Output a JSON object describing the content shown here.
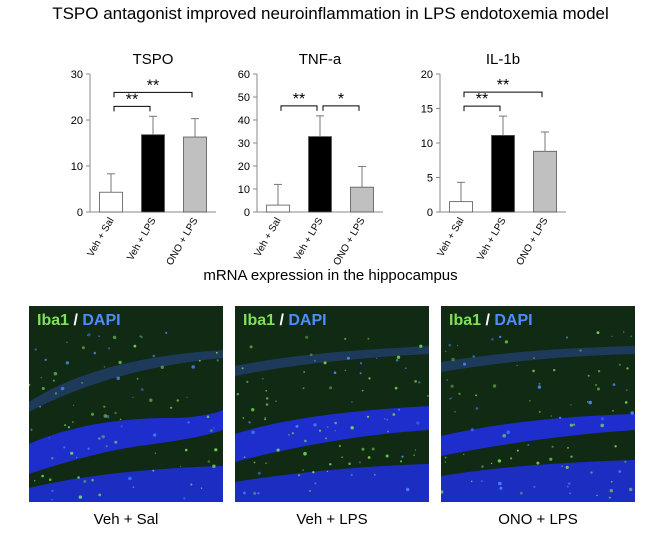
{
  "title": "TSPO antagonist improved neuroinflammation in LPS endotoxemia model",
  "subtitle": "mRNA expression in the hippocampus",
  "chart_data": [
    {
      "type": "bar",
      "title": "TSPO",
      "categories": [
        "Veh + Sal",
        "Veh + LPS",
        "ONO + LPS"
      ],
      "values": [
        4.3,
        16.8,
        16.3
      ],
      "errors": [
        4.0,
        4.0,
        4.0
      ],
      "colors": [
        "#ffffff",
        "#000000",
        "#c0c0c0"
      ],
      "ylim": [
        0,
        30
      ],
      "yticks": [
        0,
        10,
        20,
        30
      ],
      "significance": [
        {
          "from": 0,
          "to": 1,
          "label": "**"
        },
        {
          "from": 0,
          "to": 2,
          "label": "**"
        }
      ]
    },
    {
      "type": "bar",
      "title": "TNF-a",
      "categories": [
        "Veh + Sal",
        "Veh + LPS",
        "ONO + LPS"
      ],
      "values": [
        3.0,
        32.8,
        10.8
      ],
      "errors": [
        9.0,
        9.0,
        9.0
      ],
      "colors": [
        "#ffffff",
        "#000000",
        "#c0c0c0"
      ],
      "ylim": [
        0,
        60
      ],
      "yticks": [
        0,
        10,
        20,
        30,
        40,
        50,
        60
      ],
      "significance": [
        {
          "from": 0,
          "to": 1,
          "label": "**"
        },
        {
          "from": 1,
          "to": 2,
          "label": "*"
        }
      ]
    },
    {
      "type": "bar",
      "title": "IL-1b",
      "categories": [
        "Veh + Sal",
        "Veh + LPS",
        "ONO + LPS"
      ],
      "values": [
        1.5,
        11.1,
        8.8
      ],
      "errors": [
        2.8,
        2.8,
        2.8
      ],
      "colors": [
        "#ffffff",
        "#000000",
        "#c0c0c0"
      ],
      "ylim": [
        0,
        20
      ],
      "yticks": [
        0,
        5,
        10,
        15,
        20
      ],
      "significance": [
        {
          "from": 0,
          "to": 1,
          "label": "**"
        },
        {
          "from": 0,
          "to": 2,
          "label": "**"
        }
      ]
    }
  ],
  "images": [
    {
      "stain_1": "Iba1",
      "separator": "/",
      "stain_2": "DAPI",
      "caption": "Veh + Sal"
    },
    {
      "stain_1": "Iba1",
      "separator": "/",
      "stain_2": "DAPI",
      "caption": "Veh + LPS"
    },
    {
      "stain_1": "Iba1",
      "separator": "/",
      "stain_2": "DAPI",
      "caption": "ONO + LPS"
    }
  ],
  "colors": {
    "iba1_green": "#7fe05a",
    "dapi_blue": "#4f8cff",
    "tissue_dark": "#102a14",
    "nuclei_blue": "#1f2fe0"
  }
}
